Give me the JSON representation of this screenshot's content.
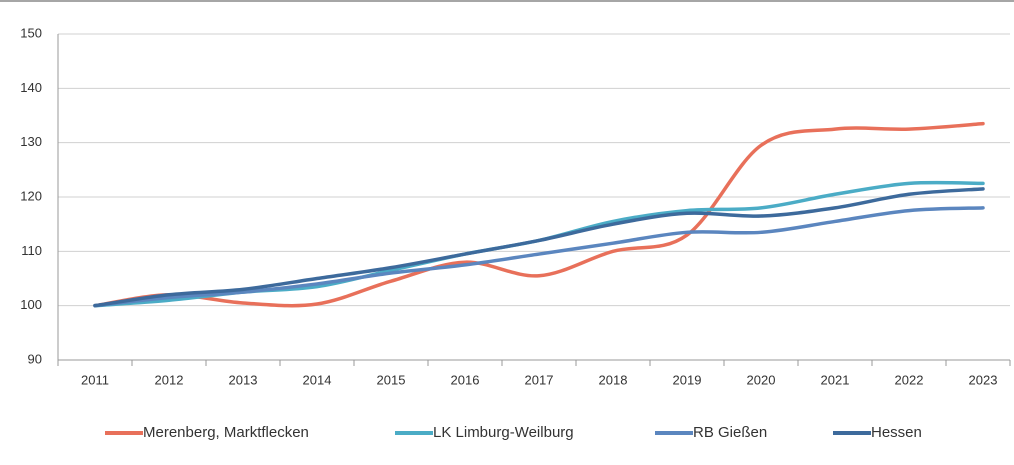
{
  "chart_data": {
    "type": "line",
    "categories": [
      "2011",
      "2012",
      "2013",
      "2014",
      "2015",
      "2016",
      "2017",
      "2018",
      "2019",
      "2020",
      "2021",
      "2022",
      "2023"
    ],
    "series": [
      {
        "name": "Merenberg, Marktflecken",
        "color": "#e8705a",
        "values": [
          100,
          102,
          100.5,
          100.3,
          104.5,
          108,
          105.5,
          110,
          113,
          129.5,
          132.5,
          132.5,
          133.5
        ]
      },
      {
        "name": "LK Limburg-Weilburg",
        "color": "#4bacc6",
        "values": [
          100,
          101,
          102.5,
          103.5,
          106.5,
          109.5,
          112,
          115.5,
          117.5,
          118,
          120.5,
          122.5,
          122.5
        ]
      },
      {
        "name": "RB Gießen",
        "color": "#5b86bf",
        "values": [
          100,
          101.5,
          102.5,
          104,
          106,
          107.5,
          109.5,
          111.5,
          113.5,
          113.5,
          115.5,
          117.5,
          118
        ]
      },
      {
        "name": "Hessen",
        "color": "#3d6a9c",
        "values": [
          100,
          102,
          103,
          105,
          107,
          109.5,
          112,
          115,
          117,
          116.5,
          118,
          120.5,
          121.5
        ]
      }
    ],
    "ylim": [
      90,
      150
    ],
    "yticks": [
      90,
      100,
      110,
      120,
      130,
      140,
      150
    ],
    "grid": true,
    "legend": "bottom"
  }
}
